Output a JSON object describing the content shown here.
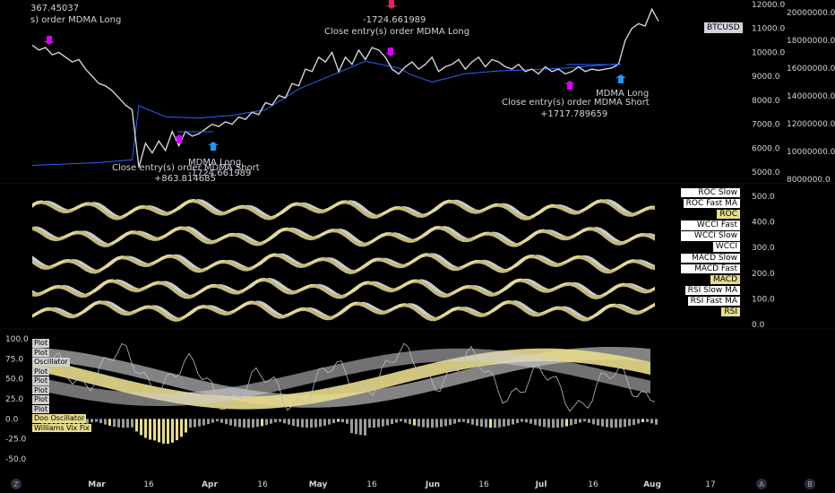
{
  "chart_data": [
    {
      "type": "line",
      "name": "main-price-pane",
      "symbol_tag": "BTCUSD",
      "right_axis_ticks": [
        "12000.0",
        "11000.0",
        "10000.0",
        "9000.0",
        "8000.0",
        "7000.0",
        "6000.0",
        "5000.0"
      ],
      "far_right_axis_ticks": [
        "20000000.0",
        "18000000.0",
        "16000000.0",
        "14000000.0",
        "12000000.0",
        "10000000.0",
        "8000000.0"
      ],
      "top_left_text": [
        "367.45037",
        "s) order MDMA Long"
      ],
      "price_points": [
        [
          0,
          10300
        ],
        [
          1,
          10100
        ],
        [
          2,
          10200
        ],
        [
          3,
          9900
        ],
        [
          4,
          10000
        ],
        [
          5,
          9800
        ],
        [
          6,
          9600
        ],
        [
          7,
          9700
        ],
        [
          8,
          9300
        ],
        [
          9,
          9000
        ],
        [
          10,
          8700
        ],
        [
          11,
          8600
        ],
        [
          12,
          8400
        ],
        [
          13,
          8100
        ],
        [
          14,
          7800
        ],
        [
          15,
          7600
        ],
        [
          16,
          5200
        ],
        [
          17,
          6200
        ],
        [
          18,
          5800
        ],
        [
          19,
          6300
        ],
        [
          20,
          5900
        ],
        [
          21,
          6700
        ],
        [
          22,
          6100
        ],
        [
          23,
          6700
        ],
        [
          24,
          6500
        ],
        [
          25,
          6600
        ],
        [
          26,
          6800
        ],
        [
          27,
          7000
        ],
        [
          28,
          6900
        ],
        [
          29,
          7100
        ],
        [
          30,
          7000
        ],
        [
          31,
          7300
        ],
        [
          32,
          7200
        ],
        [
          33,
          7500
        ],
        [
          34,
          7400
        ],
        [
          35,
          7900
        ],
        [
          36,
          7800
        ],
        [
          37,
          8200
        ],
        [
          38,
          8100
        ],
        [
          39,
          8700
        ],
        [
          40,
          8600
        ],
        [
          41,
          9300
        ],
        [
          42,
          9200
        ],
        [
          43,
          9800
        ],
        [
          44,
          9600
        ],
        [
          45,
          10000
        ],
        [
          46,
          9200
        ],
        [
          47,
          9800
        ],
        [
          48,
          9500
        ],
        [
          49,
          10100
        ],
        [
          50,
          9700
        ],
        [
          51,
          10200
        ],
        [
          52,
          10100
        ],
        [
          53,
          9800
        ],
        [
          54,
          9300
        ],
        [
          55,
          9100
        ],
        [
          56,
          9400
        ],
        [
          57,
          9600
        ],
        [
          58,
          9300
        ],
        [
          59,
          9500
        ],
        [
          60,
          9800
        ],
        [
          61,
          9200
        ],
        [
          62,
          9400
        ],
        [
          63,
          9500
        ],
        [
          64,
          9700
        ],
        [
          65,
          9300
        ],
        [
          66,
          9600
        ],
        [
          67,
          9800
        ],
        [
          68,
          9400
        ],
        [
          69,
          9700
        ],
        [
          70,
          9600
        ],
        [
          71,
          9400
        ],
        [
          72,
          9300
        ],
        [
          73,
          9500
        ],
        [
          74,
          9200
        ],
        [
          75,
          9300
        ],
        [
          76,
          9100
        ],
        [
          77,
          9400
        ],
        [
          78,
          9200
        ],
        [
          79,
          9300
        ],
        [
          80,
          9100
        ],
        [
          81,
          9200
        ],
        [
          82,
          9400
        ],
        [
          83,
          9200
        ],
        [
          84,
          9300
        ],
        [
          85,
          9250
        ],
        [
          86,
          9300
        ],
        [
          87,
          9350
        ],
        [
          88,
          9500
        ],
        [
          89,
          10500
        ],
        [
          90,
          11000
        ],
        [
          91,
          11200
        ],
        [
          92,
          11100
        ],
        [
          93,
          11800
        ],
        [
          94,
          11300
        ]
      ],
      "volume_points": [
        [
          0,
          9000000
        ],
        [
          10,
          9200000
        ],
        [
          15,
          9400000
        ],
        [
          16,
          13300000
        ],
        [
          20,
          12500000
        ],
        [
          25,
          12400000
        ],
        [
          30,
          12600000
        ],
        [
          35,
          13000000
        ],
        [
          40,
          14500000
        ],
        [
          45,
          15500000
        ],
        [
          50,
          16500000
        ],
        [
          55,
          16000000
        ],
        [
          57,
          15500000
        ],
        [
          60,
          15000000
        ],
        [
          65,
          15600000
        ],
        [
          70,
          15800000
        ],
        [
          75,
          15900000
        ],
        [
          80,
          16000000
        ],
        [
          85,
          16200000
        ],
        [
          88,
          16300000
        ]
      ],
      "annotations": [
        {
          "text": "-1724.661989",
          "sub": "Close entry(s) order MDMA Long",
          "kind": "short"
        },
        {
          "text": "Close entry(s) order MDMA Short",
          "sub": "+1717.789659",
          "kind": "long"
        },
        {
          "text": "MDMA Long",
          "kind": "long"
        },
        {
          "text": "MDMA Long",
          "sub": "-1724.661989",
          "kind": "long"
        },
        {
          "text": "Close entry(s) order MDMA Short",
          "sub": "+863.814685",
          "kind": "long"
        }
      ]
    },
    {
      "type": "area",
      "name": "oscillator-stack-pane",
      "right_axis_ticks": [
        "500.0",
        "400.0",
        "300.0",
        "200.0",
        "100.0",
        "0.0"
      ],
      "legend_items": [
        {
          "label": "ROC Slow MA",
          "style": "white"
        },
        {
          "label": "ROC Fast MA",
          "style": "white"
        },
        {
          "label": "ROC",
          "style": "yellow"
        },
        {
          "label": "WCCI Fast MA",
          "style": "white"
        },
        {
          "label": "WCCI Slow MA",
          "style": "white"
        },
        {
          "label": "WCCI",
          "style": "white"
        },
        {
          "label": "MACD Slow MA",
          "style": "white"
        },
        {
          "label": "MACD Fast MA",
          "style": "white"
        },
        {
          "label": "MACD",
          "style": "yellow"
        },
        {
          "label": "RSI Slow MA",
          "style": "white"
        },
        {
          "label": "RSI Fast MA",
          "style": "white"
        },
        {
          "label": "RSI",
          "style": "yellow"
        }
      ]
    },
    {
      "type": "area",
      "name": "doo-oscillator-pane",
      "left_axis_ticks": [
        "100.0",
        "75.0",
        "50.0",
        "25.0",
        "0.0",
        "-25.0",
        "-50.0"
      ],
      "legend_items": [
        "Plot",
        "Plot",
        "Oscillator",
        "Plot",
        "Plot",
        "Plot",
        "Plot",
        "Plot",
        "Doo Oscillator",
        "Williams Vix Fix"
      ],
      "ylim": [
        -55,
        105
      ]
    }
  ],
  "time_axis": {
    "left_button": "Z",
    "labels": [
      "Mar",
      "16",
      "Apr",
      "16",
      "May",
      "16",
      "Jun",
      "16",
      "Jul",
      "16",
      "Aug",
      "17"
    ],
    "right_buttons": [
      "A",
      "B"
    ]
  },
  "colors": {
    "background": "#000000",
    "price_line": "#d1d4dc",
    "volume_line": "#2962ff",
    "accent_yellow": "#e8dc8c",
    "short_arrow": "#e91e63",
    "long_arrow": "#2196f3",
    "magenta": "#d500f9"
  }
}
